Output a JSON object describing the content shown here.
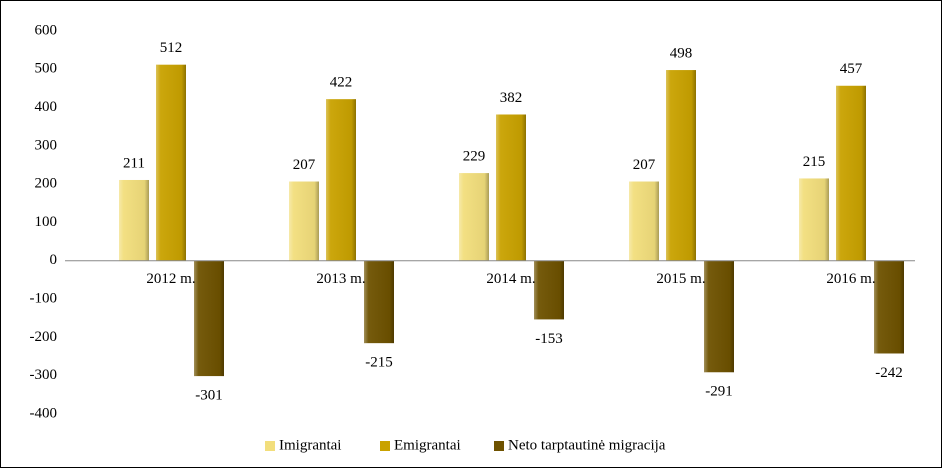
{
  "chart_data": {
    "type": "bar",
    "categories": [
      "2012 m.",
      "2013 m.",
      "2014 m.",
      "2015 m.",
      "2016 m."
    ],
    "series": [
      {
        "name": "Imigrantai",
        "color": "#f2de7c",
        "values": [
          211,
          207,
          229,
          207,
          215
        ]
      },
      {
        "name": "Emigrantai",
        "color": "#c9a200",
        "values": [
          512,
          422,
          382,
          498,
          457
        ]
      },
      {
        "name": "Neto tarptautinė migracija",
        "color": "#6e5200",
        "values": [
          -301,
          -215,
          -153,
          -291,
          -242
        ]
      }
    ],
    "ylim": [
      -400,
      600
    ],
    "yticks": [
      -400,
      -300,
      -200,
      -100,
      0,
      100,
      200,
      300,
      400,
      500,
      600
    ],
    "grid": false,
    "legend": "bottom"
  }
}
